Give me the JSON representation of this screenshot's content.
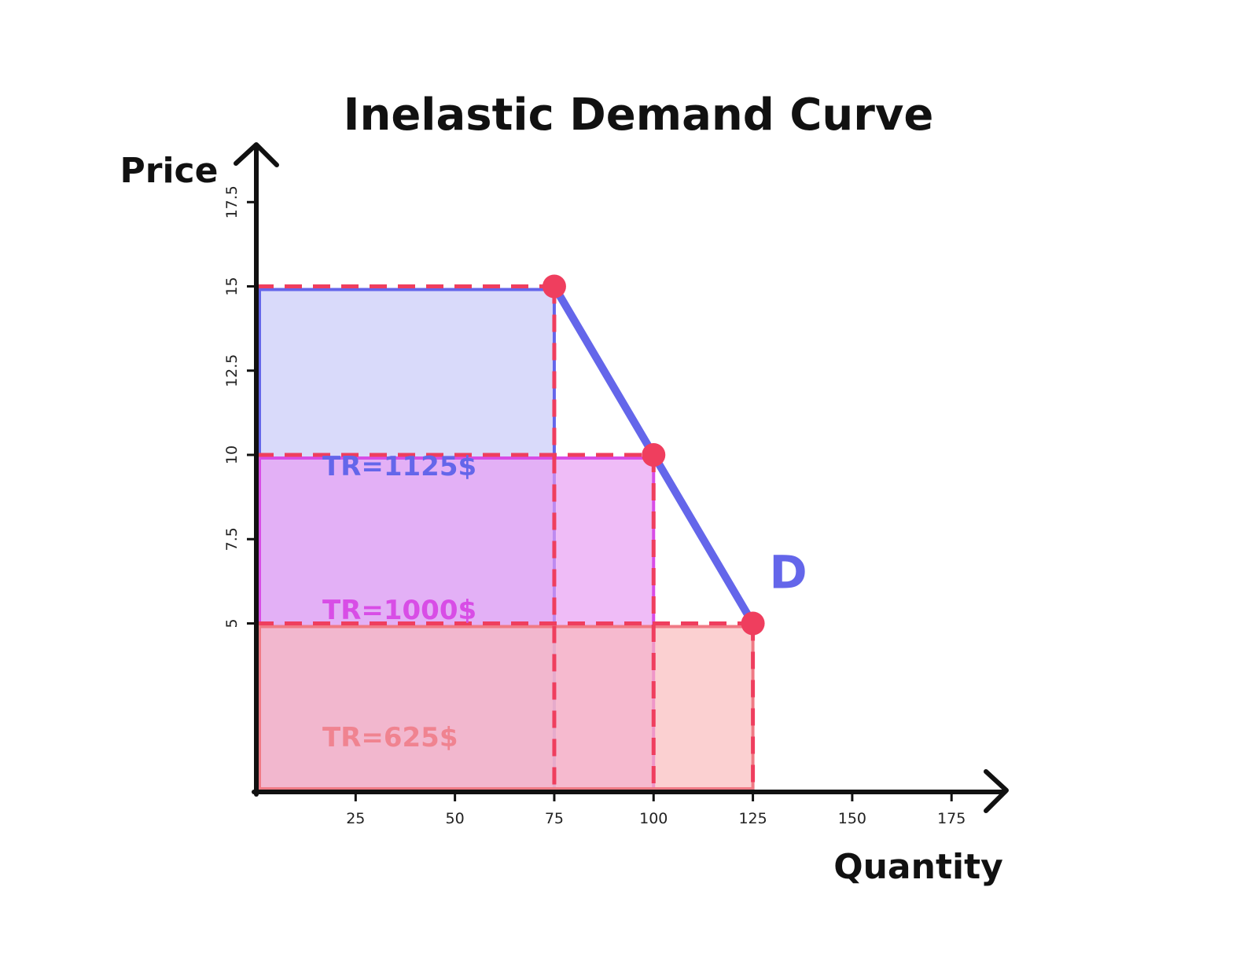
{
  "chart_data": {
    "type": "line",
    "title": "Inelastic Demand Curve",
    "xlabel": "Quantity",
    "ylabel": "Price",
    "xlim": [
      0,
      190
    ],
    "ylim": [
      0,
      20
    ],
    "x_ticks": [
      25,
      50,
      75,
      100,
      125,
      150,
      175
    ],
    "x_tick_labels": [
      "25",
      "50",
      "75",
      "100",
      "125",
      "150",
      "175"
    ],
    "y_ticks": [
      5,
      7.5,
      10,
      12.5,
      15,
      17.5
    ],
    "y_tick_labels": [
      "5",
      "7.5",
      "10",
      "12.5",
      "15",
      "17.5"
    ],
    "curve": {
      "name": "D",
      "color": "#6466ea",
      "points": [
        {
          "x": 75,
          "y": 15
        },
        {
          "x": 100,
          "y": 10
        },
        {
          "x": 125,
          "y": 5
        }
      ]
    },
    "point_color": "#ef3e5e",
    "guide_color": "#ef3e5e",
    "revenue_areas": [
      {
        "label": "TR=1125$",
        "quantity": 75,
        "price": 15,
        "fill": "#c7c8f8",
        "stroke": "#6466ea",
        "text_color": "#6466ea"
      },
      {
        "label": "TR=1000$",
        "quantity": 100,
        "price": 10,
        "fill": "#e79cf3",
        "stroke": "#d84de6",
        "text_color": "#d84de6"
      },
      {
        "label": "TR=625$",
        "quantity": 125,
        "price": 5,
        "fill": "#f9b9bb",
        "stroke": "#f07a85",
        "text_color": "#f07a85"
      }
    ],
    "grid": false
  }
}
